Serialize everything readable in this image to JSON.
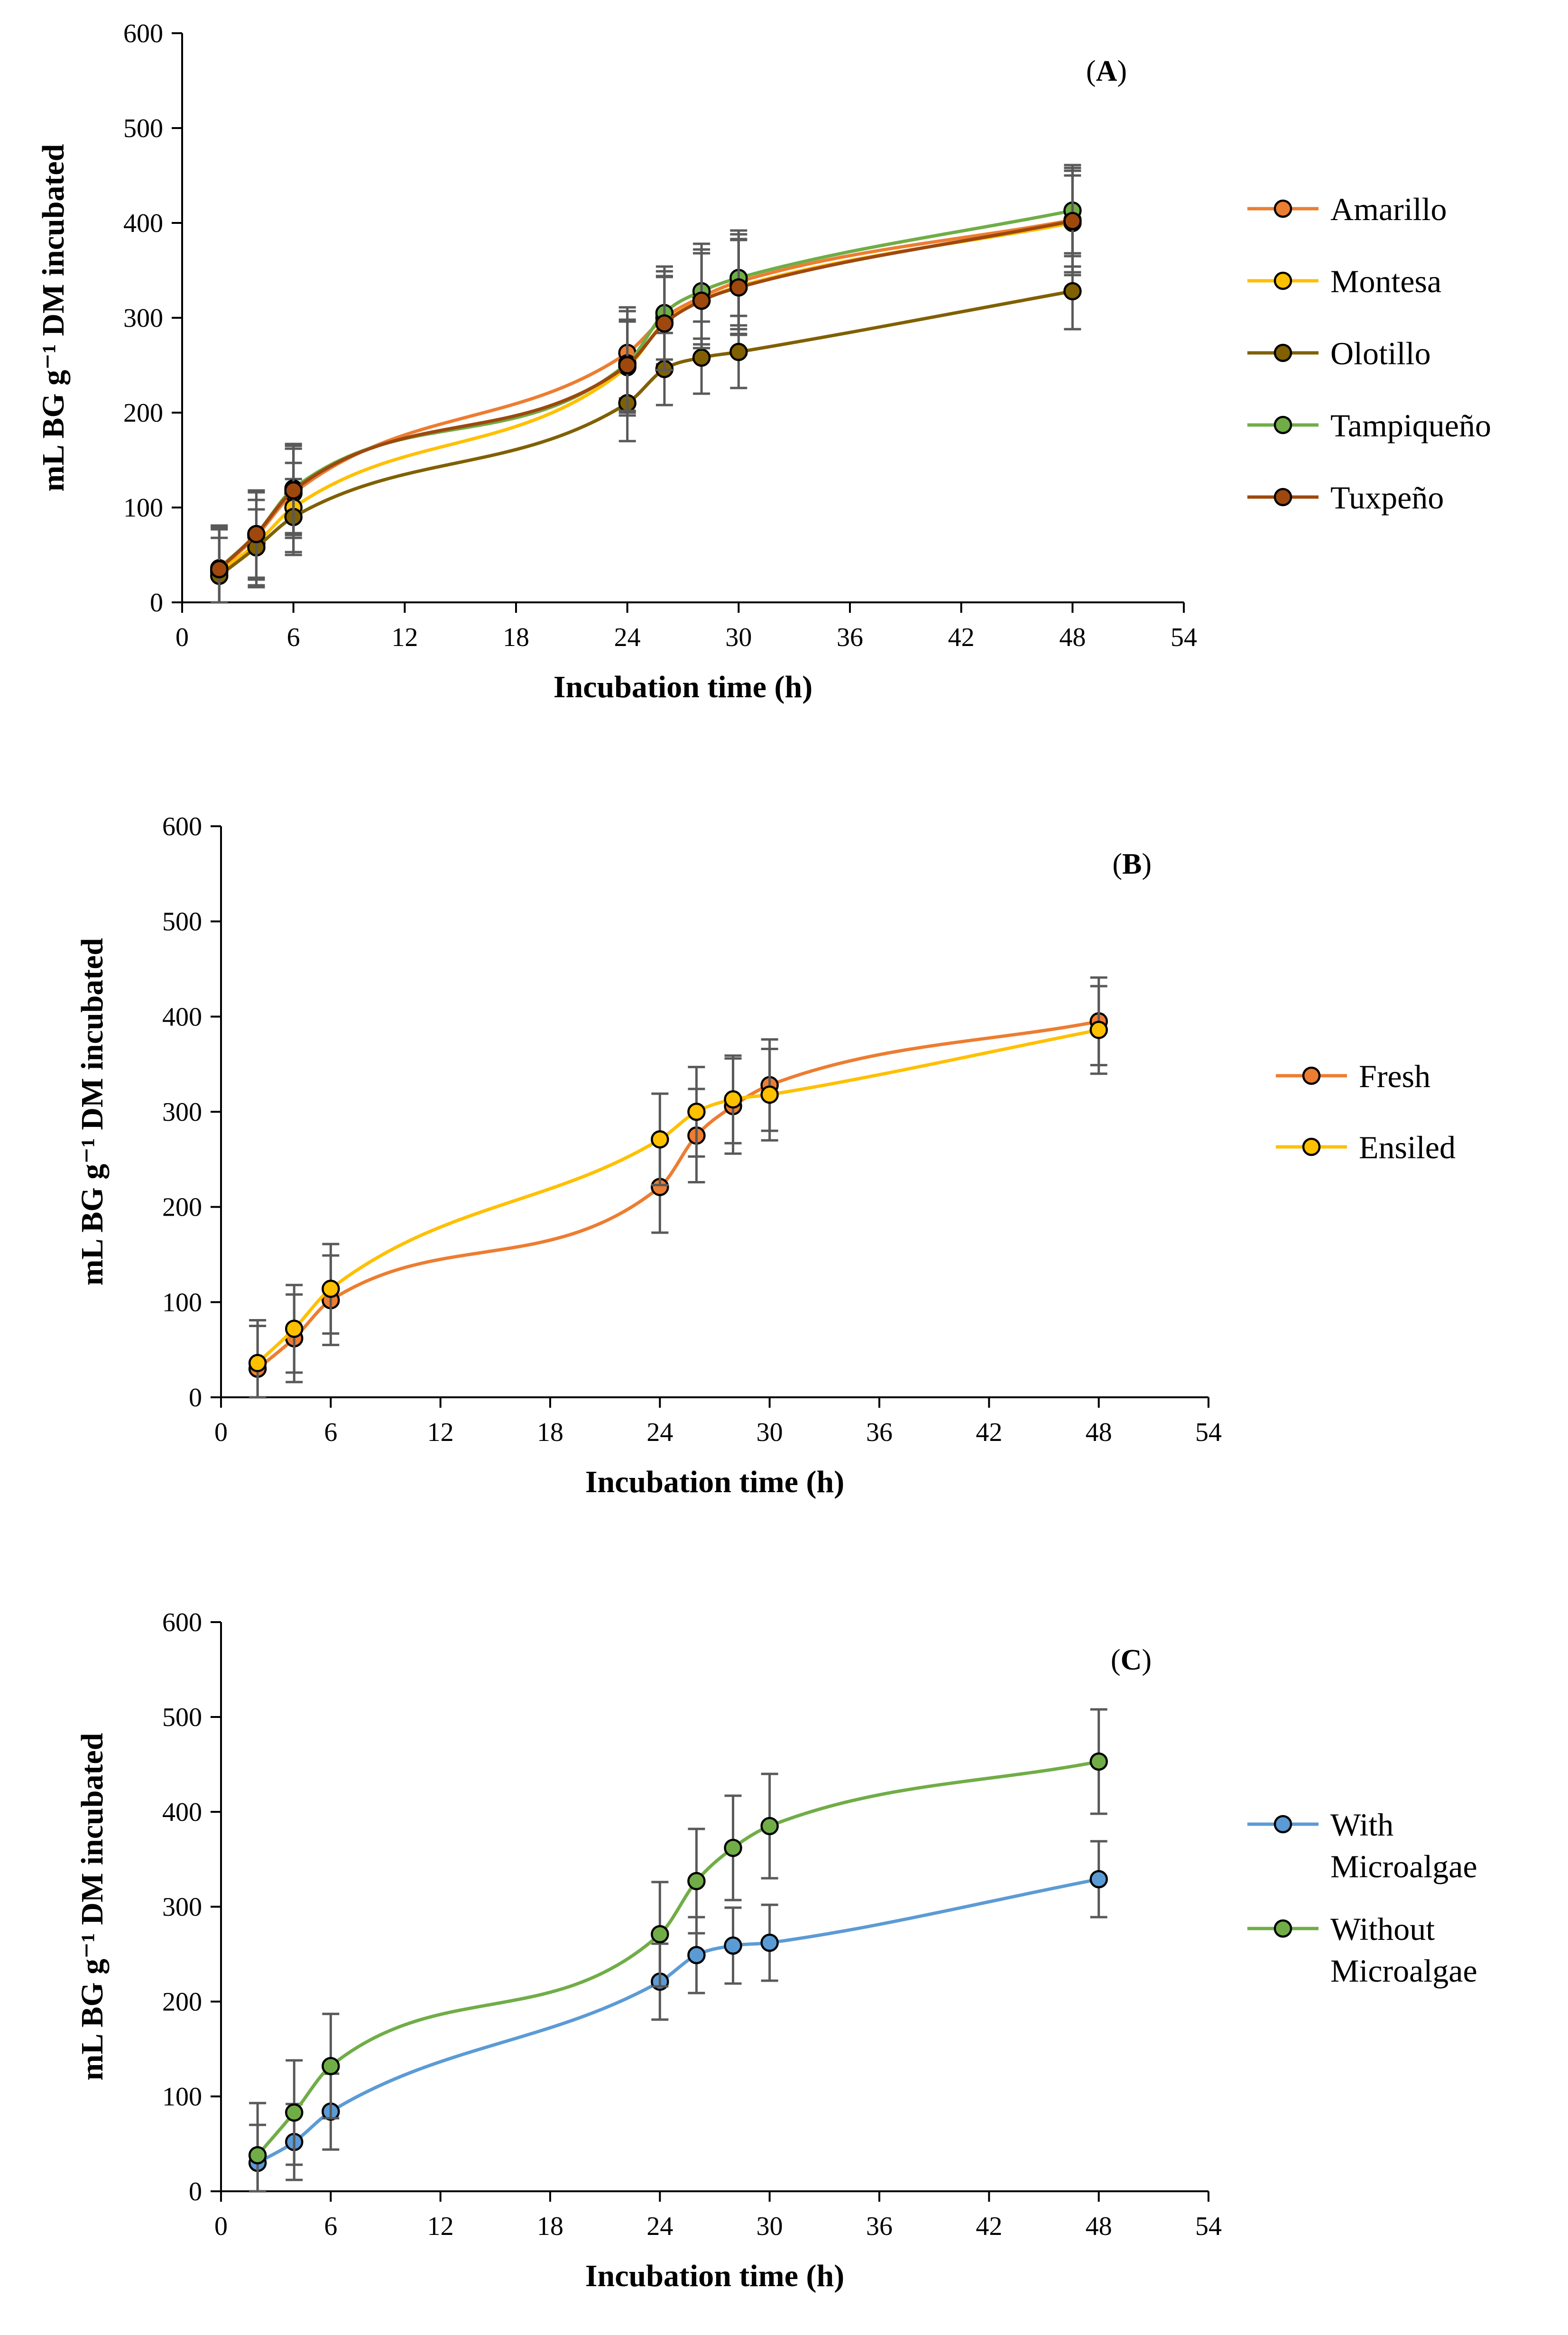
{
  "chart_data": [
    {
      "type": "line",
      "panel": "A",
      "panel_label": "A",
      "xlabel": "Incubation time (h)",
      "ylabel": "mL BG g⁻¹ DM incubated",
      "xlim": [
        0,
        54
      ],
      "ylim": [
        0,
        600
      ],
      "xticks": [
        0,
        6,
        12,
        18,
        24,
        30,
        36,
        42,
        48,
        54
      ],
      "yticks": [
        0,
        100,
        200,
        300,
        400,
        500,
        600
      ],
      "grid": false,
      "legend_position": "right",
      "x": [
        2,
        4,
        6,
        24,
        26,
        28,
        30,
        48
      ],
      "series": [
        {
          "name": "Amarillo",
          "color": "#ED7D31",
          "values": [
            34,
            70,
            115,
            263,
            300,
            322,
            338,
            403
          ],
          "error": [
            45,
            46,
            47,
            48,
            49,
            50,
            50,
            55
          ]
        },
        {
          "name": "Montesa",
          "color": "#FFC000",
          "values": [
            32,
            62,
            100,
            248,
            295,
            318,
            333,
            400
          ],
          "error": [
            45,
            46,
            47,
            48,
            49,
            50,
            50,
            55
          ]
        },
        {
          "name": "Olotillo",
          "color": "#806000",
          "values": [
            28,
            58,
            90,
            210,
            246,
            258,
            264,
            328
          ],
          "error": [
            40,
            40,
            40,
            40,
            38,
            38,
            38,
            40
          ]
        },
        {
          "name": "Tampiqueño",
          "color": "#70AD47",
          "values": [
            36,
            72,
            120,
            252,
            305,
            328,
            342,
            413
          ],
          "error": [
            45,
            46,
            47,
            55,
            49,
            50,
            50,
            48
          ]
        },
        {
          "name": "Tuxpeño",
          "color": "#9E480E",
          "values": [
            35,
            72,
            118,
            250,
            294,
            318,
            332,
            402
          ],
          "error": [
            45,
            46,
            47,
            48,
            49,
            50,
            50,
            48
          ]
        }
      ]
    },
    {
      "type": "line",
      "panel": "B",
      "panel_label": "B",
      "xlabel": "Incubation time (h)",
      "ylabel": "mL BG g⁻¹ DM incubated",
      "xlim": [
        0,
        54
      ],
      "ylim": [
        0,
        600
      ],
      "xticks": [
        0,
        6,
        12,
        18,
        24,
        30,
        36,
        42,
        48,
        54
      ],
      "yticks": [
        0,
        100,
        200,
        300,
        400,
        500,
        600
      ],
      "grid": false,
      "legend_position": "right",
      "x": [
        2,
        4,
        6,
        24,
        26,
        28,
        30,
        48
      ],
      "series": [
        {
          "name": "Fresh",
          "color": "#ED7D31",
          "values": [
            30,
            62,
            102,
            221,
            275,
            306,
            328,
            395
          ],
          "error": [
            45,
            46,
            47,
            48,
            49,
            50,
            48,
            46
          ]
        },
        {
          "name": "Ensiled",
          "color": "#FFC000",
          "values": [
            36,
            72,
            114,
            271,
            300,
            313,
            318,
            386
          ],
          "error": [
            45,
            46,
            47,
            48,
            47,
            46,
            48,
            46
          ]
        }
      ]
    },
    {
      "type": "line",
      "panel": "C",
      "panel_label": "C",
      "xlabel": "Incubation time (h)",
      "ylabel": "mL BG g⁻¹ DM incubated",
      "xlim": [
        0,
        54
      ],
      "ylim": [
        0,
        600
      ],
      "xticks": [
        0,
        6,
        12,
        18,
        24,
        30,
        36,
        42,
        48,
        54
      ],
      "yticks": [
        0,
        100,
        200,
        300,
        400,
        500,
        600
      ],
      "grid": false,
      "legend_position": "right",
      "x": [
        2,
        4,
        6,
        24,
        26,
        28,
        30,
        48
      ],
      "series": [
        {
          "name": "With Microalgae",
          "legend_lines": [
            "With",
            "Microalgae"
          ],
          "color": "#5B9BD5",
          "values": [
            30,
            52,
            84,
            221,
            249,
            259,
            262,
            329
          ],
          "error": [
            40,
            40,
            40,
            40,
            40,
            40,
            40,
            40
          ]
        },
        {
          "name": "Without Microalgae",
          "legend_lines": [
            "Without",
            "Microalgae"
          ],
          "color": "#70AD47",
          "values": [
            38,
            83,
            132,
            271,
            327,
            362,
            385,
            453
          ],
          "error": [
            55,
            55,
            55,
            55,
            55,
            55,
            55,
            55
          ]
        }
      ]
    }
  ]
}
